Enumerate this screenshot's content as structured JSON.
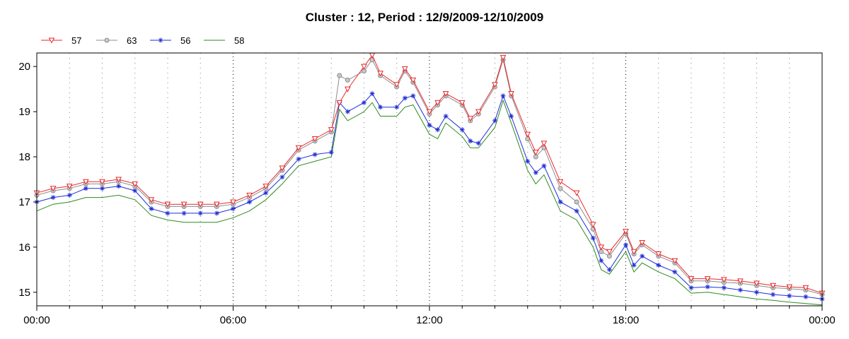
{
  "chart_data": {
    "type": "line",
    "title": "Cluster : 12, Period : 12/9/2009-12/10/2009",
    "xlabel": "",
    "ylabel": "",
    "xlim": [
      0,
      24
    ],
    "ylim": [
      14.7,
      20.3
    ],
    "x_ticks": [
      {
        "value": 0,
        "label": "00:00"
      },
      {
        "value": 6,
        "label": "06:00"
      },
      {
        "value": 12,
        "label": "12:00"
      },
      {
        "value": 18,
        "label": "18:00"
      },
      {
        "value": 24,
        "label": "00:00"
      }
    ],
    "y_ticks": [
      {
        "value": 15,
        "label": "15"
      },
      {
        "value": 16,
        "label": "16"
      },
      {
        "value": 17,
        "label": "17"
      },
      {
        "value": 18,
        "label": "18"
      },
      {
        "value": 19,
        "label": "19"
      },
      {
        "value": 20,
        "label": "20"
      }
    ],
    "grid": {
      "vertical_dotted": true,
      "horizontal": false
    },
    "legend": "top-left",
    "x": [
      0,
      0.5,
      1,
      1.5,
      2,
      2.5,
      3,
      3.5,
      4,
      4.5,
      5,
      5.5,
      6,
      6.5,
      7,
      7.5,
      8,
      8.5,
      9,
      9.25,
      9.5,
      10,
      10.25,
      10.5,
      11,
      11.25,
      11.5,
      12,
      12.25,
      12.5,
      13,
      13.25,
      13.5,
      14,
      14.25,
      14.5,
      15,
      15.25,
      15.5,
      16,
      16.5,
      17,
      17.25,
      17.5,
      18,
      18.25,
      18.5,
      19,
      19.5,
      20,
      20.5,
      21,
      21.5,
      22,
      22.5,
      23,
      23.5,
      24
    ],
    "series": [
      {
        "name": "57",
        "color": "#e8272a",
        "marker": "triangle-down",
        "values": [
          17.2,
          17.3,
          17.35,
          17.45,
          17.45,
          17.5,
          17.4,
          17.05,
          16.95,
          16.95,
          16.95,
          16.95,
          17.0,
          17.15,
          17.35,
          17.75,
          18.2,
          18.4,
          18.6,
          19.2,
          19.5,
          20.0,
          20.25,
          19.85,
          19.6,
          19.95,
          19.7,
          19.0,
          19.2,
          19.4,
          19.2,
          18.85,
          19.0,
          19.6,
          20.2,
          19.4,
          18.5,
          18.1,
          18.3,
          17.45,
          17.2,
          16.5,
          16.0,
          15.9,
          16.35,
          15.9,
          16.1,
          15.85,
          15.7,
          15.3,
          15.3,
          15.28,
          15.25,
          15.2,
          15.15,
          15.12,
          15.1,
          14.98
        ]
      },
      {
        "name": "63",
        "color": "#8c8c8c",
        "marker": "circle",
        "values": [
          17.15,
          17.25,
          17.3,
          17.4,
          17.4,
          17.45,
          17.35,
          17.0,
          16.9,
          16.9,
          16.9,
          16.9,
          16.95,
          17.1,
          17.3,
          17.7,
          18.15,
          18.35,
          18.55,
          19.8,
          19.7,
          19.9,
          20.15,
          19.8,
          19.55,
          19.9,
          19.65,
          18.95,
          19.15,
          19.35,
          19.15,
          18.8,
          18.95,
          19.55,
          20.15,
          19.35,
          18.4,
          18.0,
          18.2,
          17.3,
          17.0,
          16.4,
          15.9,
          15.8,
          16.3,
          15.85,
          16.05,
          15.8,
          15.65,
          15.25,
          15.25,
          15.22,
          15.2,
          15.15,
          15.1,
          15.08,
          15.05,
          14.95
        ]
      },
      {
        "name": "56",
        "color": "#1f2ed6",
        "marker": "asterisk",
        "values": [
          17.0,
          17.1,
          17.15,
          17.3,
          17.3,
          17.35,
          17.25,
          16.85,
          16.75,
          16.75,
          16.75,
          16.75,
          16.85,
          17.0,
          17.2,
          17.55,
          17.95,
          18.05,
          18.1,
          19.2,
          19.0,
          19.2,
          19.4,
          19.1,
          19.1,
          19.3,
          19.35,
          18.7,
          18.6,
          18.9,
          18.6,
          18.35,
          18.3,
          18.8,
          19.35,
          18.9,
          17.9,
          17.65,
          17.8,
          17.0,
          16.8,
          16.2,
          15.7,
          15.5,
          16.05,
          15.6,
          15.8,
          15.6,
          15.45,
          15.1,
          15.12,
          15.1,
          15.05,
          15.0,
          14.95,
          14.92,
          14.9,
          14.85
        ]
      },
      {
        "name": "58",
        "color": "#2e8b1e",
        "marker": "none",
        "values": [
          16.8,
          16.95,
          17.0,
          17.1,
          17.1,
          17.15,
          17.05,
          16.7,
          16.6,
          16.55,
          16.55,
          16.55,
          16.65,
          16.8,
          17.05,
          17.4,
          17.8,
          17.9,
          18.0,
          19.05,
          18.8,
          19.0,
          19.2,
          18.9,
          18.9,
          19.1,
          19.15,
          18.5,
          18.4,
          18.75,
          18.45,
          18.2,
          18.2,
          18.65,
          19.25,
          18.75,
          17.7,
          17.4,
          17.6,
          16.8,
          16.6,
          16.0,
          15.5,
          15.4,
          15.9,
          15.45,
          15.65,
          15.45,
          15.3,
          14.98,
          15.0,
          14.95,
          14.9,
          14.85,
          14.82,
          14.78,
          14.75,
          14.72
        ]
      }
    ]
  }
}
